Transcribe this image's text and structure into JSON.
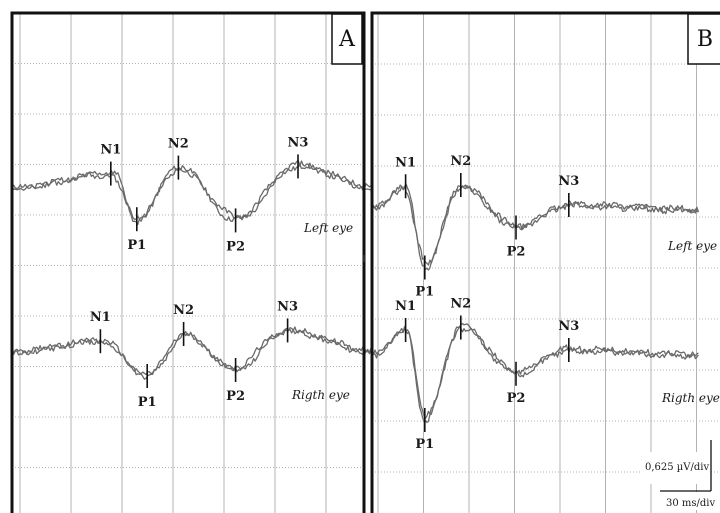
{
  "chart_data": [
    {
      "type": "line",
      "panel": "A",
      "title": "A",
      "xlabel": "",
      "ylabel": "",
      "grid": true,
      "xlim": [
        0,
        7.0
      ],
      "traces": [
        {
          "label": "Left eye",
          "peaks": [
            {
              "name": "N1",
              "t": 1.9,
              "v": 0.6
            },
            {
              "name": "P1",
              "t": 2.4,
              "v": -1.3
            },
            {
              "name": "N2",
              "t": 3.2,
              "v": 0.85
            },
            {
              "name": "P2",
              "t": 4.3,
              "v": -1.35
            },
            {
              "name": "N3",
              "t": 5.5,
              "v": 0.9
            }
          ]
        },
        {
          "label": "Rigth eye",
          "peaks": [
            {
              "name": "N1",
              "t": 1.7,
              "v": 0.45
            },
            {
              "name": "P1",
              "t": 2.6,
              "v": -1.0
            },
            {
              "name": "N2",
              "t": 3.3,
              "v": 0.75
            },
            {
              "name": "P2",
              "t": 4.3,
              "v": -0.75
            },
            {
              "name": "N3",
              "t": 5.3,
              "v": 0.9
            }
          ]
        }
      ]
    },
    {
      "type": "line",
      "panel": "B",
      "title": "B",
      "xlabel": "",
      "ylabel": "",
      "grid": true,
      "xlim": [
        0,
        6.8
      ],
      "traces": [
        {
          "label": "Left eye",
          "peaks": [
            {
              "name": "N1",
              "t": 0.7,
              "v": 0.95
            },
            {
              "name": "P1",
              "t": 1.1,
              "v": -2.3
            },
            {
              "name": "N2",
              "t": 1.85,
              "v": 1.0
            },
            {
              "name": "P2",
              "t": 3.0,
              "v": -0.7
            },
            {
              "name": "N3",
              "t": 4.1,
              "v": 0.2
            }
          ]
        },
        {
          "label": "Rigth eye",
          "peaks": [
            {
              "name": "N1",
              "t": 0.7,
              "v": 1.0
            },
            {
              "name": "P1",
              "t": 1.1,
              "v": -2.6
            },
            {
              "name": "N2",
              "t": 1.85,
              "v": 1.1
            },
            {
              "name": "P2",
              "t": 3.0,
              "v": -0.75
            },
            {
              "name": "N3",
              "t": 4.1,
              "v": 0.2
            }
          ]
        }
      ],
      "scale": {
        "y": "0,625 µV/div",
        "x": "30 ms/div"
      }
    }
  ]
}
